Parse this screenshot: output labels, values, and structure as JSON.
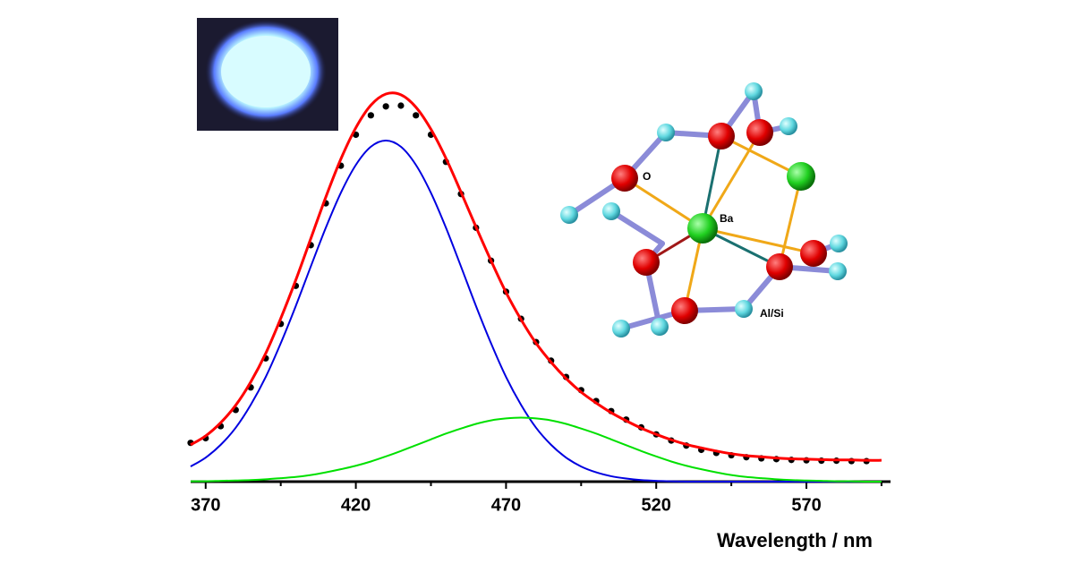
{
  "chart_data": {
    "type": "line",
    "x_label": "Wavelength / nm",
    "xlim": [
      365,
      598
    ],
    "ylim": [
      0,
      1
    ],
    "xticks": [
      370,
      420,
      470,
      520,
      570
    ],
    "xminor_ticks": [
      395,
      445,
      495,
      545,
      595
    ],
    "x": [
      365,
      370,
      375,
      380,
      385,
      390,
      395,
      400,
      405,
      410,
      415,
      420,
      425,
      430,
      435,
      440,
      445,
      450,
      455,
      460,
      465,
      470,
      475,
      480,
      485,
      490,
      495,
      500,
      505,
      510,
      515,
      520,
      525,
      530,
      535,
      540,
      545,
      550,
      555,
      560,
      565,
      570,
      575,
      580,
      585,
      590,
      595
    ],
    "series": [
      {
        "color": "#0000e0",
        "values": [
          0.039,
          0.062,
          0.095,
          0.139,
          0.198,
          0.27,
          0.357,
          0.453,
          0.555,
          0.655,
          0.745,
          0.817,
          0.864,
          0.88,
          0.864,
          0.817,
          0.745,
          0.655,
          0.555,
          0.453,
          0.357,
          0.27,
          0.198,
          0.139,
          0.095,
          0.062,
          0.039,
          0.024,
          0.014,
          0.008,
          0.004,
          0.002,
          0.001,
          0,
          0,
          0,
          0,
          0,
          0,
          0,
          0,
          0,
          0,
          0,
          0,
          0,
          0
        ]
      },
      {
        "color": "#00e000",
        "values": [
          0.001,
          0.001,
          0.002,
          0.003,
          0.004,
          0.006,
          0.009,
          0.012,
          0.017,
          0.024,
          0.032,
          0.041,
          0.052,
          0.065,
          0.079,
          0.094,
          0.109,
          0.124,
          0.137,
          0.149,
          0.158,
          0.163,
          0.165,
          0.163,
          0.158,
          0.149,
          0.137,
          0.124,
          0.109,
          0.094,
          0.079,
          0.065,
          0.052,
          0.041,
          0.032,
          0.024,
          0.017,
          0.012,
          0.009,
          0.006,
          0.004,
          0.003,
          0.002,
          0.001,
          0.001,
          0,
          0
        ]
      },
      {
        "color": "#000000",
        "marker": "dot",
        "x": [
          365,
          370,
          375,
          380,
          385,
          390,
          395,
          400,
          405,
          410,
          415,
          420,
          425,
          430,
          435,
          440,
          445,
          450,
          455,
          460,
          465,
          470,
          475,
          480,
          485,
          490,
          495,
          500,
          505,
          510,
          515,
          520,
          525,
          530,
          535,
          540,
          545,
          550,
          555,
          560,
          565,
          570,
          575,
          580,
          585,
          590
        ],
        "values": [
          0.1,
          0.112,
          0.143,
          0.185,
          0.243,
          0.318,
          0.407,
          0.505,
          0.61,
          0.718,
          0.815,
          0.895,
          0.945,
          0.968,
          0.97,
          0.945,
          0.895,
          0.825,
          0.742,
          0.655,
          0.57,
          0.49,
          0.42,
          0.36,
          0.312,
          0.27,
          0.236,
          0.208,
          0.182,
          0.16,
          0.14,
          0.122,
          0.106,
          0.093,
          0.082,
          0.074,
          0.068,
          0.063,
          0.06,
          0.058,
          0.056,
          0.055,
          0.054,
          0.054,
          0.053,
          0.053
        ]
      },
      {
        "color": "#ff0000",
        "values": [
          0.095,
          0.118,
          0.152,
          0.197,
          0.257,
          0.331,
          0.421,
          0.52,
          0.627,
          0.734,
          0.832,
          0.913,
          0.971,
          1.0,
          0.998,
          0.966,
          0.909,
          0.834,
          0.747,
          0.657,
          0.57,
          0.488,
          0.418,
          0.357,
          0.308,
          0.266,
          0.231,
          0.203,
          0.178,
          0.157,
          0.138,
          0.122,
          0.108,
          0.096,
          0.087,
          0.079,
          0.072,
          0.067,
          0.064,
          0.061,
          0.059,
          0.058,
          0.057,
          0.056,
          0.056,
          0.055,
          0.055
        ]
      }
    ],
    "annotations": [
      "O",
      "Ba",
      "Al/Si"
    ]
  }
}
